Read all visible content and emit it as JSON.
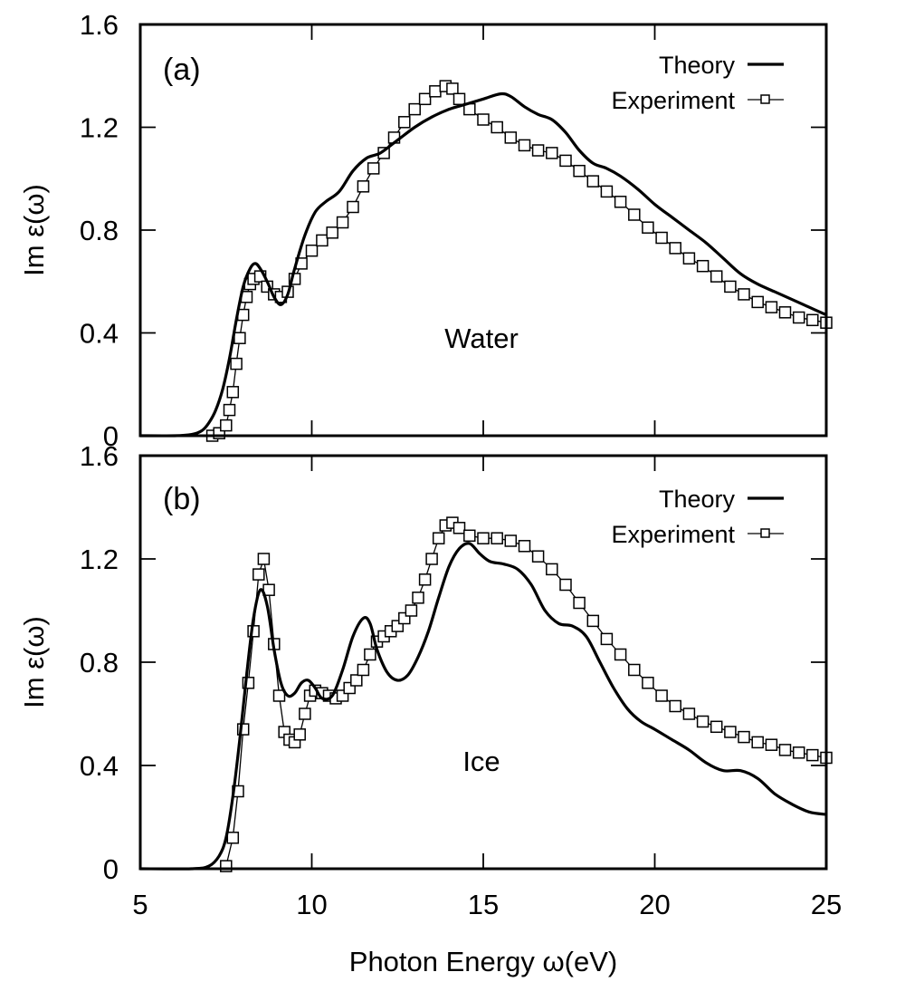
{
  "chart_data": [
    {
      "type": "line",
      "panel_label": "(a)",
      "annotation": "Water",
      "xlabel": "",
      "ylabel": "Im ε(ω)",
      "xlim": [
        5,
        25
      ],
      "ylim": [
        0,
        1.6
      ],
      "xticks": [
        5,
        10,
        15,
        20,
        25
      ],
      "yticks": [
        0,
        0.4,
        0.8,
        1.2,
        1.6
      ],
      "ytick_labels": [
        "0",
        "0.4",
        "0.8",
        "1.2",
        "1.6"
      ],
      "show_xtick_labels": false,
      "grid": false,
      "legend": {
        "position": "top-right",
        "entries": [
          "Theory",
          "Experiment"
        ]
      },
      "series": [
        {
          "name": "Theory",
          "style": "solid-line",
          "x": [
            5.0,
            6.0,
            6.5,
            6.8,
            7.0,
            7.2,
            7.4,
            7.6,
            7.8,
            8.0,
            8.2,
            8.35,
            8.5,
            8.7,
            8.9,
            9.1,
            9.3,
            9.5,
            9.8,
            10.1,
            10.4,
            10.8,
            11.2,
            11.6,
            12.0,
            12.5,
            13.0,
            13.5,
            14.0,
            14.5,
            15.0,
            15.5,
            15.8,
            16.2,
            16.6,
            17.0,
            17.4,
            17.8,
            18.2,
            18.6,
            19.0,
            19.5,
            20.0,
            20.5,
            21.0,
            21.5,
            22.0,
            22.5,
            23.0,
            23.5,
            24.0,
            24.5,
            25.0
          ],
          "y": [
            0.0,
            0.0,
            0.005,
            0.02,
            0.05,
            0.1,
            0.18,
            0.3,
            0.45,
            0.58,
            0.65,
            0.67,
            0.65,
            0.6,
            0.54,
            0.51,
            0.55,
            0.65,
            0.78,
            0.87,
            0.91,
            0.95,
            1.03,
            1.08,
            1.1,
            1.15,
            1.2,
            1.24,
            1.27,
            1.29,
            1.31,
            1.33,
            1.32,
            1.28,
            1.25,
            1.23,
            1.18,
            1.11,
            1.06,
            1.04,
            1.01,
            0.96,
            0.9,
            0.85,
            0.8,
            0.75,
            0.69,
            0.63,
            0.59,
            0.56,
            0.53,
            0.5,
            0.47
          ]
        },
        {
          "name": "Experiment",
          "style": "line-with-square-markers",
          "x": [
            7.1,
            7.3,
            7.5,
            7.6,
            7.7,
            7.8,
            7.9,
            8.0,
            8.1,
            8.2,
            8.3,
            8.5,
            8.7,
            8.9,
            9.1,
            9.3,
            9.5,
            9.7,
            10.0,
            10.3,
            10.6,
            10.9,
            11.2,
            11.5,
            11.8,
            12.1,
            12.4,
            12.7,
            13.0,
            13.3,
            13.6,
            13.9,
            14.1,
            14.3,
            14.6,
            15.0,
            15.4,
            15.8,
            16.2,
            16.6,
            17.0,
            17.4,
            17.8,
            18.2,
            18.6,
            19.0,
            19.4,
            19.8,
            20.2,
            20.6,
            21.0,
            21.4,
            21.8,
            22.2,
            22.6,
            23.0,
            23.4,
            23.8,
            24.2,
            24.6,
            25.0
          ],
          "y": [
            0.0,
            0.01,
            0.04,
            0.1,
            0.17,
            0.28,
            0.38,
            0.47,
            0.54,
            0.59,
            0.61,
            0.62,
            0.58,
            0.55,
            0.54,
            0.56,
            0.61,
            0.67,
            0.72,
            0.76,
            0.79,
            0.83,
            0.89,
            0.97,
            1.04,
            1.1,
            1.16,
            1.22,
            1.27,
            1.31,
            1.34,
            1.36,
            1.35,
            1.31,
            1.27,
            1.23,
            1.2,
            1.16,
            1.13,
            1.11,
            1.1,
            1.07,
            1.03,
            0.99,
            0.95,
            0.91,
            0.86,
            0.81,
            0.77,
            0.73,
            0.69,
            0.66,
            0.62,
            0.58,
            0.55,
            0.52,
            0.5,
            0.48,
            0.46,
            0.45,
            0.44
          ]
        }
      ]
    },
    {
      "type": "line",
      "panel_label": "(b)",
      "annotation": "Ice",
      "xlabel": "Photon Energy ω(eV)",
      "ylabel": "Im ε(ω)",
      "xlim": [
        5,
        25
      ],
      "ylim": [
        0,
        1.6
      ],
      "xticks": [
        5,
        10,
        15,
        20,
        25
      ],
      "xtick_labels": [
        "5",
        "10",
        "15",
        "20",
        "25"
      ],
      "yticks": [
        0,
        0.4,
        0.8,
        1.2,
        1.6
      ],
      "ytick_labels": [
        "0",
        "0.4",
        "0.8",
        "1.2",
        "1.6"
      ],
      "show_xtick_labels": true,
      "grid": false,
      "legend": {
        "position": "top-right",
        "entries": [
          "Theory",
          "Experiment"
        ]
      },
      "series": [
        {
          "name": "Theory",
          "style": "solid-line",
          "x": [
            5.0,
            6.5,
            7.0,
            7.3,
            7.5,
            7.7,
            7.9,
            8.1,
            8.3,
            8.5,
            8.7,
            8.9,
            9.1,
            9.3,
            9.5,
            9.7,
            9.9,
            10.1,
            10.3,
            10.6,
            10.9,
            11.2,
            11.5,
            11.7,
            11.9,
            12.2,
            12.5,
            12.8,
            13.1,
            13.4,
            13.7,
            14.0,
            14.3,
            14.6,
            14.9,
            15.2,
            15.6,
            16.0,
            16.4,
            16.8,
            17.2,
            17.6,
            18.0,
            18.4,
            18.8,
            19.2,
            19.6,
            20.0,
            20.5,
            21.0,
            21.5,
            22.0,
            22.5,
            23.0,
            23.5,
            24.0,
            24.5,
            25.0
          ],
          "y": [
            0.0,
            0.0,
            0.01,
            0.05,
            0.12,
            0.28,
            0.5,
            0.75,
            0.97,
            1.08,
            1.02,
            0.85,
            0.72,
            0.67,
            0.68,
            0.72,
            0.73,
            0.7,
            0.66,
            0.67,
            0.77,
            0.9,
            0.97,
            0.95,
            0.85,
            0.76,
            0.73,
            0.75,
            0.82,
            0.92,
            1.05,
            1.17,
            1.24,
            1.26,
            1.22,
            1.19,
            1.18,
            1.16,
            1.1,
            1.0,
            0.95,
            0.94,
            0.9,
            0.8,
            0.7,
            0.62,
            0.57,
            0.54,
            0.5,
            0.46,
            0.41,
            0.38,
            0.38,
            0.35,
            0.29,
            0.25,
            0.22,
            0.21
          ]
        },
        {
          "name": "Experiment",
          "style": "line-with-square-markers",
          "x": [
            7.5,
            7.7,
            7.85,
            8.0,
            8.15,
            8.3,
            8.45,
            8.6,
            8.75,
            8.9,
            9.05,
            9.2,
            9.35,
            9.5,
            9.65,
            9.8,
            9.95,
            10.1,
            10.3,
            10.5,
            10.7,
            10.9,
            11.1,
            11.3,
            11.5,
            11.7,
            11.9,
            12.1,
            12.3,
            12.5,
            12.7,
            12.9,
            13.1,
            13.3,
            13.5,
            13.7,
            13.9,
            14.1,
            14.3,
            14.6,
            15.0,
            15.4,
            15.8,
            16.2,
            16.6,
            17.0,
            17.4,
            17.8,
            18.2,
            18.6,
            19.0,
            19.4,
            19.8,
            20.2,
            20.6,
            21.0,
            21.4,
            21.8,
            22.2,
            22.6,
            23.0,
            23.4,
            23.8,
            24.2,
            24.6,
            25.0
          ],
          "y": [
            0.01,
            0.12,
            0.3,
            0.54,
            0.72,
            0.92,
            1.14,
            1.2,
            1.08,
            0.87,
            0.67,
            0.53,
            0.5,
            0.49,
            0.52,
            0.6,
            0.67,
            0.69,
            0.68,
            0.67,
            0.66,
            0.67,
            0.7,
            0.73,
            0.77,
            0.83,
            0.88,
            0.9,
            0.92,
            0.94,
            0.97,
            1.0,
            1.05,
            1.12,
            1.2,
            1.28,
            1.33,
            1.34,
            1.32,
            1.29,
            1.28,
            1.28,
            1.27,
            1.25,
            1.21,
            1.16,
            1.1,
            1.03,
            0.96,
            0.89,
            0.83,
            0.77,
            0.72,
            0.67,
            0.63,
            0.6,
            0.57,
            0.55,
            0.53,
            0.51,
            0.49,
            0.48,
            0.46,
            0.45,
            0.44,
            0.43
          ]
        }
      ]
    }
  ],
  "shared": {
    "xlabel": "Photon Energy ω(eV)",
    "ylabel": "Im ε(ω)"
  }
}
